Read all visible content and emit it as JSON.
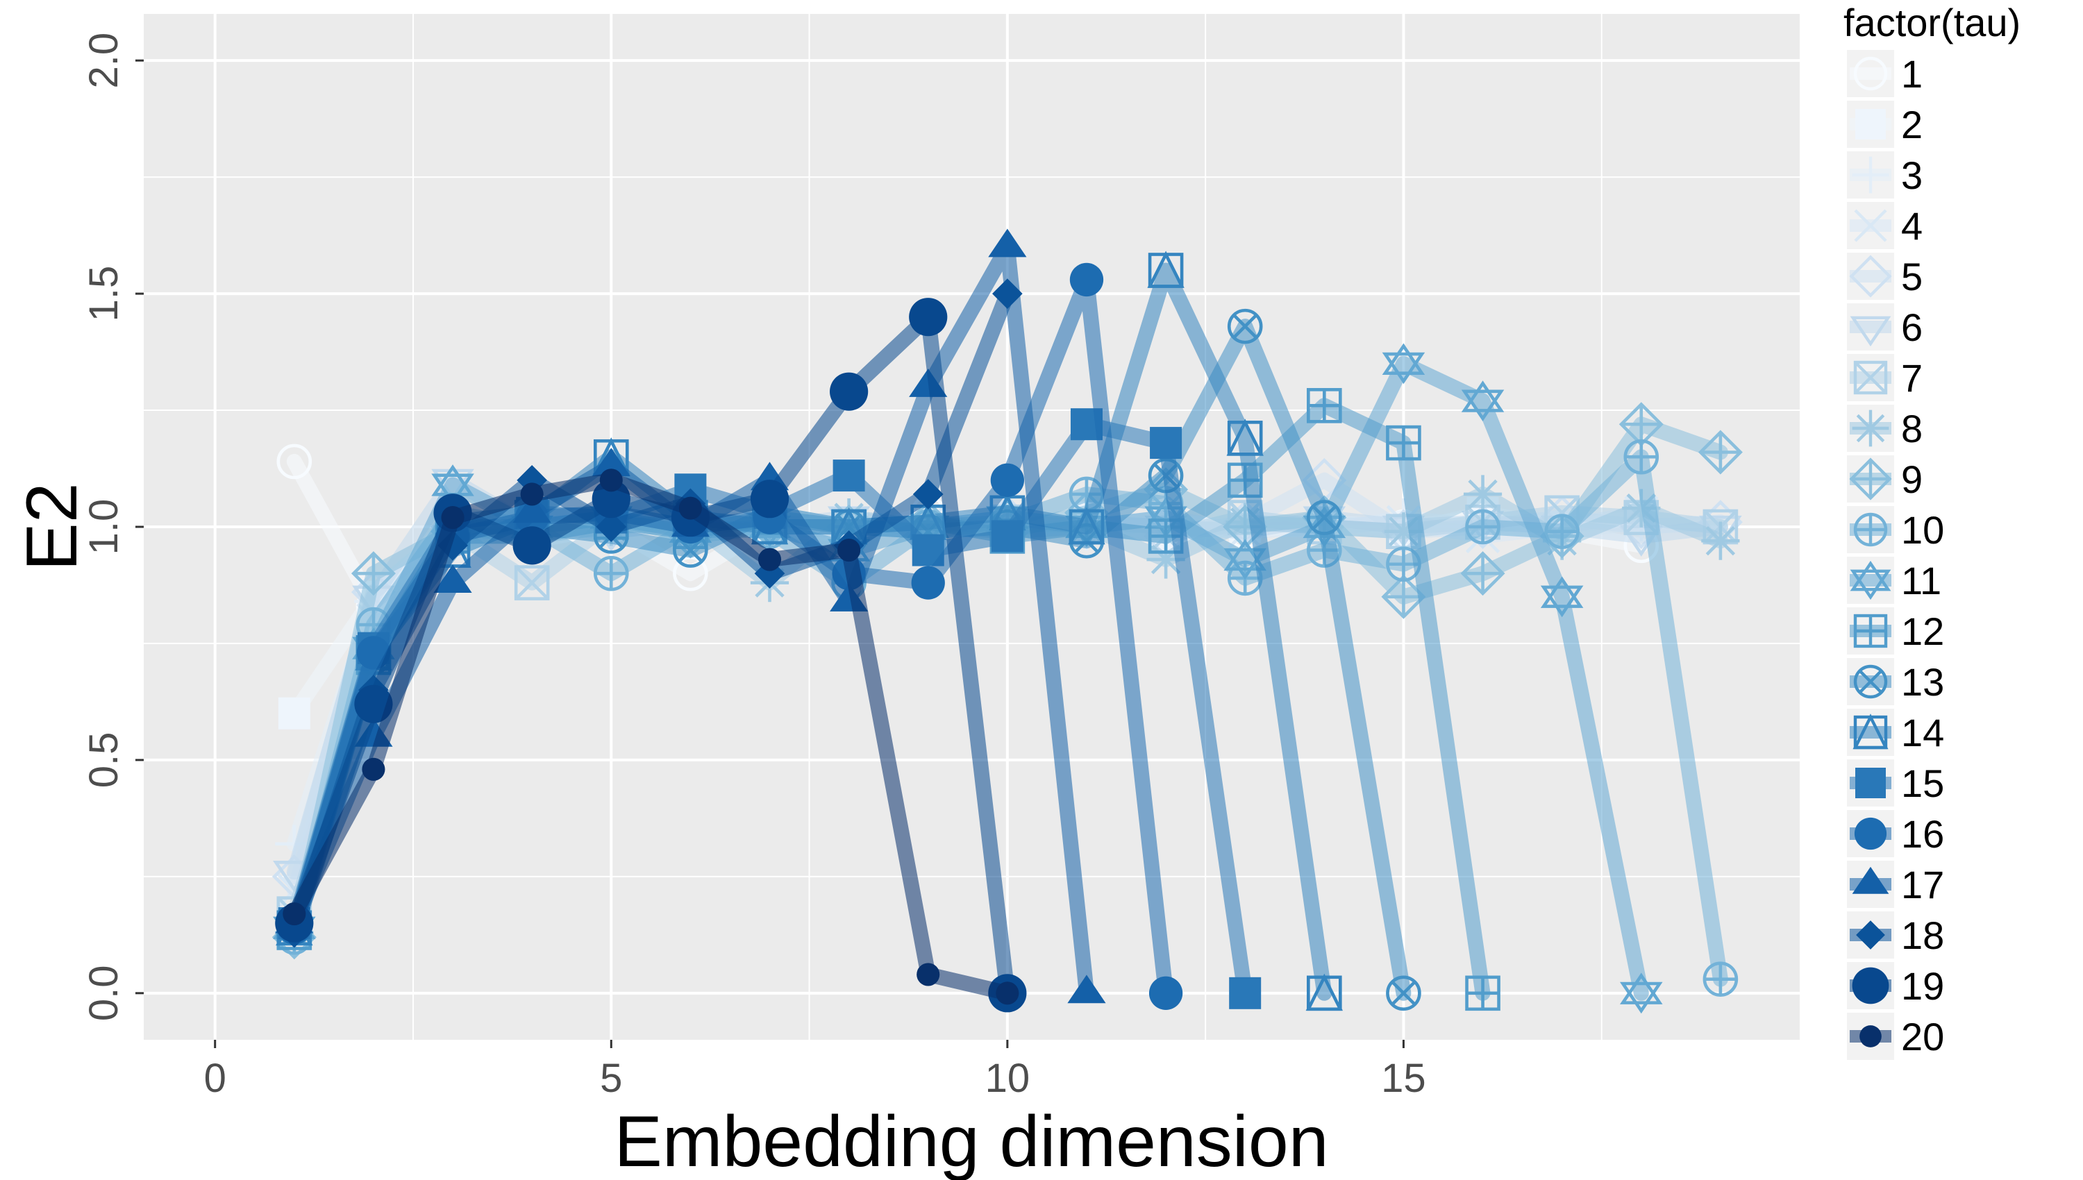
{
  "chart_data": {
    "type": "line",
    "xlabel": "Embedding dimension",
    "ylabel": "E2",
    "xlim": [
      -0.9,
      20
    ],
    "ylim": [
      -0.1,
      2.1
    ],
    "x_ticks": [
      "0",
      "5",
      "10",
      "15"
    ],
    "y_ticks": [
      "0.0",
      "0.5",
      "1.0",
      "1.5",
      "2.0"
    ],
    "grid": true,
    "legend": {
      "title": "factor(tau)",
      "placement": "right"
    },
    "colors": {
      "panel": "#ebebeb",
      "grid": "#ffffff",
      "palette": [
        "#f7fbff",
        "#eef5fc",
        "#e3eef8",
        "#d9e8f5",
        "#cfe1f2",
        "#c1d9ed",
        "#b1d2e8",
        "#9fc9e2",
        "#8abfdd",
        "#73b2d8",
        "#62a8d3",
        "#529dcc",
        "#4392c6",
        "#3585c0",
        "#2978b8",
        "#1d6cb1",
        "#1460a8",
        "#0b539a",
        "#08488e",
        "#08306b"
      ]
    },
    "series": [
      {
        "name": "1",
        "shape": "circle-open",
        "x": [
          1,
          2,
          3,
          4,
          5,
          6,
          7,
          8,
          9,
          10,
          11,
          12,
          13,
          14,
          15,
          16,
          17,
          18
        ],
        "y": [
          1.14,
          0.83,
          1.02,
          0.97,
          1.0,
          0.9,
          1.0,
          0.98,
          1.03,
          1.0,
          1.01,
          1.0,
          0.99,
          1.01,
          1.0,
          1.02,
          0.99,
          0.96
        ]
      },
      {
        "name": "2",
        "shape": "square-solid",
        "x": [
          1,
          2,
          3,
          4,
          5,
          6,
          7,
          8,
          9,
          10,
          11,
          12,
          13,
          14,
          15,
          16,
          17,
          18
        ],
        "y": [
          0.6,
          0.85,
          1.0,
          0.98,
          1.02,
          0.99,
          1.0,
          1.01,
          0.99,
          1.0,
          1.02,
          0.98,
          1.0,
          1.01,
          0.99,
          1.03,
          1.0,
          1.02
        ]
      },
      {
        "name": "3",
        "shape": "plus",
        "x": [
          1,
          2,
          3,
          4,
          5,
          6,
          7,
          8,
          9,
          10,
          11,
          12,
          13,
          14,
          15,
          16,
          17,
          18
        ],
        "y": [
          0.32,
          0.84,
          1.0,
          0.99,
          1.01,
          1.0,
          0.98,
          1.01,
          1.0,
          1.02,
          0.99,
          1.01,
          1.0,
          0.99,
          1.02,
          1.0,
          0.99,
          1.01
        ]
      },
      {
        "name": "4",
        "shape": "x",
        "x": [
          1,
          2,
          3,
          4,
          5,
          6,
          7,
          8,
          9,
          10,
          11,
          12,
          13,
          14,
          15,
          16,
          17,
          18
        ],
        "y": [
          0.22,
          0.8,
          0.98,
          1.0,
          1.02,
          0.99,
          1.0,
          0.99,
          1.01,
          1.0,
          1.0,
          1.02,
          0.99,
          1.0,
          1.01,
          0.98,
          1.0,
          1.03
        ]
      },
      {
        "name": "5",
        "shape": "diamond-open",
        "x": [
          1,
          2,
          3,
          4,
          5,
          6,
          7,
          8,
          9,
          10,
          11,
          12,
          13,
          14,
          15,
          16,
          17,
          18,
          19
        ],
        "y": [
          0.25,
          0.86,
          1.0,
          0.98,
          1.02,
          1.0,
          1.01,
          0.99,
          1.0,
          1.02,
          1.0,
          0.98,
          1.01,
          1.1,
          0.99,
          1.0,
          1.02,
          1.0,
          1.01
        ]
      },
      {
        "name": "6",
        "shape": "triangle-down-open",
        "x": [
          1,
          2,
          3,
          4,
          5,
          6,
          7,
          8,
          9,
          10,
          11,
          12,
          13,
          14,
          15,
          16,
          17,
          18,
          19
        ],
        "y": [
          0.26,
          0.85,
          1.1,
          1.0,
          0.99,
          1.01,
          1.0,
          1.02,
          0.99,
          1.0,
          1.01,
          1.0,
          0.99,
          1.02,
          1.0,
          1.01,
          1.0,
          0.98,
          1.0
        ]
      },
      {
        "name": "7",
        "shape": "square-x",
        "x": [
          1,
          2,
          3,
          4,
          5,
          6,
          7,
          8,
          9,
          10,
          11,
          12,
          13,
          14,
          15,
          16,
          17,
          18,
          19
        ],
        "y": [
          0.17,
          0.73,
          0.99,
          0.88,
          1.01,
          1.0,
          1.03,
          1.0,
          0.99,
          1.01,
          1.0,
          0.98,
          1.02,
          1.0,
          0.99,
          1.01,
          1.03,
          1.02,
          1.0
        ]
      },
      {
        "name": "8",
        "shape": "asterisk",
        "x": [
          1,
          2,
          3,
          4,
          5,
          6,
          7,
          8,
          9,
          10,
          11,
          12,
          13,
          14,
          15,
          16,
          17,
          18,
          19
        ],
        "y": [
          0.13,
          0.72,
          1.0,
          0.98,
          1.0,
          1.01,
          0.88,
          1.02,
          1.0,
          0.99,
          1.0,
          0.93,
          1.01,
          1.0,
          0.99,
          1.07,
          0.97,
          1.04,
          0.97
        ]
      },
      {
        "name": "9",
        "shape": "diamond-plus",
        "x": [
          1,
          2,
          3,
          4,
          5,
          6,
          7,
          8,
          9,
          10,
          11,
          12,
          13,
          14,
          15,
          16,
          17,
          18,
          19
        ],
        "y": [
          0.12,
          0.9,
          0.99,
          1.0,
          1.02,
          0.98,
          1.0,
          1.0,
          1.01,
          0.99,
          1.03,
          1.08,
          1.0,
          1.02,
          0.85,
          0.9,
          0.98,
          1.22,
          1.16
        ]
      },
      {
        "name": "10",
        "shape": "circle-plus",
        "x": [
          1,
          2,
          3,
          4,
          5,
          6,
          7,
          8,
          9,
          10,
          11,
          12,
          13,
          14,
          15,
          16,
          17,
          18,
          19
        ],
        "y": [
          0.12,
          0.79,
          1.03,
          1.0,
          0.9,
          1.0,
          0.99,
          0.88,
          1.0,
          1.01,
          1.07,
          1.05,
          0.89,
          0.95,
          0.92,
          1.0,
          0.99,
          1.15,
          0.03
        ]
      },
      {
        "name": "11",
        "shape": "star-of-david",
        "x": [
          1,
          2,
          3,
          4,
          5,
          6,
          7,
          8,
          9,
          10,
          11,
          12,
          13,
          14,
          15,
          16,
          17,
          18
        ],
        "y": [
          0.14,
          0.74,
          1.09,
          1.0,
          1.02,
          0.99,
          1.0,
          0.95,
          1.0,
          1.02,
          1.0,
          1.02,
          0.93,
          1.0,
          1.35,
          1.27,
          0.85,
          0.0
        ]
      },
      {
        "name": "12",
        "shape": "square-plus",
        "x": [
          1,
          2,
          3,
          4,
          5,
          6,
          7,
          8,
          9,
          10,
          11,
          12,
          13,
          14,
          15,
          16
        ],
        "y": [
          0.13,
          0.72,
          0.98,
          0.98,
          1.01,
          0.99,
          1.02,
          1.0,
          1.01,
          0.98,
          1.0,
          0.98,
          1.1,
          1.26,
          1.18,
          0.0
        ]
      },
      {
        "name": "13",
        "shape": "circle-x",
        "x": [
          1,
          2,
          3,
          4,
          5,
          6,
          7,
          8,
          9,
          10,
          11,
          12,
          13,
          14,
          15
        ],
        "y": [
          0.14,
          0.72,
          1.0,
          1.0,
          0.98,
          0.95,
          1.03,
          1.0,
          0.99,
          1.0,
          0.97,
          1.11,
          1.43,
          1.02,
          0.0
        ]
      },
      {
        "name": "14",
        "shape": "square-triangle",
        "x": [
          1,
          2,
          3,
          4,
          5,
          6,
          7,
          8,
          9,
          10,
          11,
          12,
          13,
          14
        ],
        "y": [
          0.14,
          0.73,
          0.95,
          1.02,
          1.15,
          1.02,
          1.0,
          1.0,
          1.01,
          1.03,
          1.0,
          1.55,
          1.19,
          0.0
        ]
      },
      {
        "name": "15",
        "shape": "square-solid",
        "x": [
          1,
          2,
          3,
          4,
          5,
          6,
          7,
          8,
          9,
          10,
          11,
          12,
          13
        ],
        "y": [
          0.15,
          0.74,
          1.01,
          1.03,
          1.02,
          1.08,
          1.03,
          1.11,
          0.95,
          0.98,
          1.22,
          1.18,
          0.0
        ]
      },
      {
        "name": "16",
        "shape": "circle-solid",
        "x": [
          1,
          2,
          3,
          4,
          5,
          6,
          7,
          8,
          9,
          10,
          11,
          12
        ],
        "y": [
          0.14,
          0.73,
          0.98,
          1.02,
          1.03,
          1.0,
          1.02,
          0.9,
          0.88,
          1.1,
          1.53,
          0.0
        ]
      },
      {
        "name": "17",
        "shape": "triangle-solid",
        "x": [
          1,
          2,
          3,
          4,
          5,
          6,
          7,
          8,
          9,
          10,
          11
        ],
        "y": [
          0.15,
          0.55,
          0.88,
          1.03,
          1.13,
          1.0,
          1.1,
          0.84,
          1.3,
          1.6,
          0.0
        ]
      },
      {
        "name": "18",
        "shape": "diamond-solid",
        "x": [
          1,
          2,
          3,
          4,
          5,
          6,
          7,
          8,
          9,
          10
        ],
        "y": [
          0.13,
          0.65,
          0.96,
          1.1,
          1.0,
          1.05,
          0.9,
          0.96,
          1.07,
          1.5
        ]
      },
      {
        "name": "19",
        "shape": "circle-solid-large",
        "x": [
          1,
          2,
          3,
          4,
          5,
          6,
          7,
          8,
          9,
          10
        ],
        "y": [
          0.15,
          0.62,
          1.03,
          0.96,
          1.06,
          1.02,
          1.06,
          1.29,
          1.45,
          0.0
        ]
      },
      {
        "name": "20",
        "shape": "circle-solid-small",
        "x": [
          1,
          2,
          3,
          4,
          5,
          6,
          7,
          8,
          9,
          10
        ],
        "y": [
          0.17,
          0.48,
          1.02,
          1.07,
          1.1,
          1.04,
          0.93,
          0.95,
          0.04,
          0.0
        ]
      }
    ]
  }
}
